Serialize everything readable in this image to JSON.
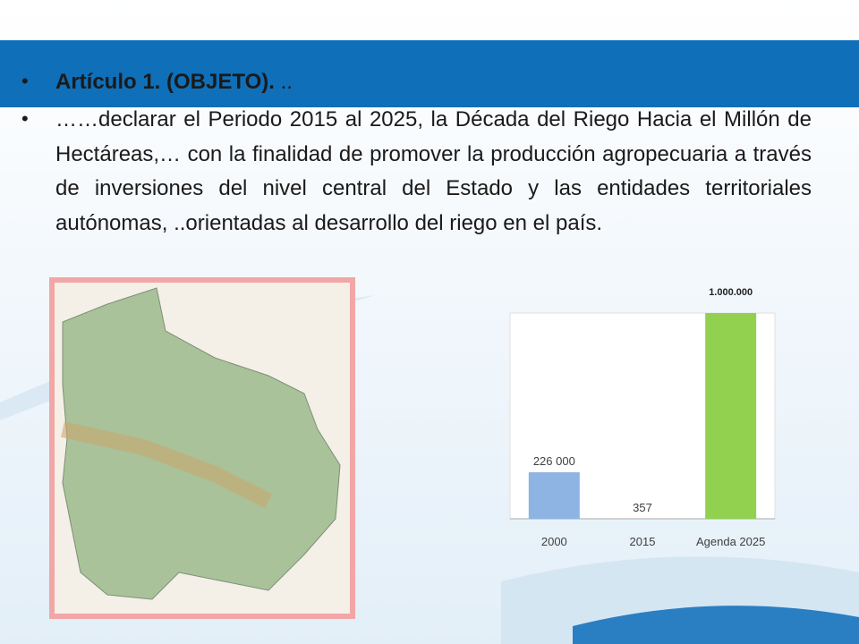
{
  "bullets": [
    {
      "bold": "Artículo 1. (OBJETO).",
      "rest": " .."
    },
    {
      "text": "……declarar el Periodo 2015 al 2025, la Década del Riego Hacia el Millón de Hectáreas,… con la finalidad de promover la producción agropecuaria a través de inversiones del nivel central del Estado y las entidades territoriales autónomas, ..orientadas al desarrollo del riego en el país."
    }
  ],
  "chart_data": {
    "type": "bar",
    "categories": [
      "2000",
      "2015",
      "Agenda 2025"
    ],
    "values": [
      226000,
      357,
      1000000
    ],
    "value_labels": [
      "226 000",
      "357",
      "1.000.000"
    ],
    "colors": [
      "#8eb4e3",
      "#f79646",
      "#92d050"
    ]
  }
}
